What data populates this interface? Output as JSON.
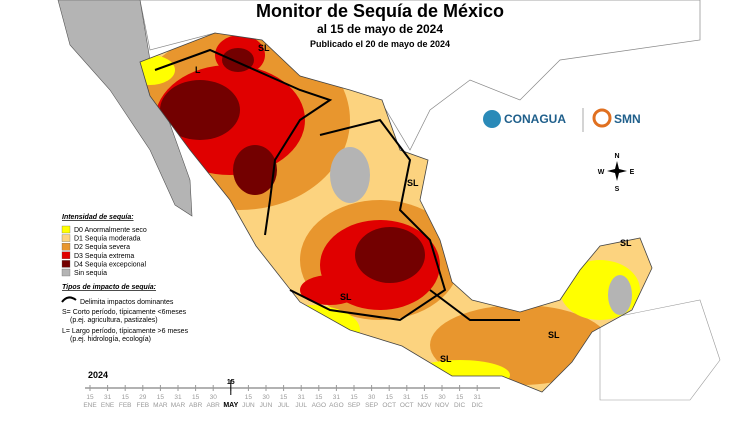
{
  "header": {
    "title": "Monitor de Sequía de México",
    "subtitle": "al 15 de mayo de 2024",
    "published": "Publicado el 20 de mayo de 2024"
  },
  "logos": {
    "left": "CONAGUA",
    "right": "SMN"
  },
  "legend": {
    "title": "Intensidad de sequía:",
    "items": [
      {
        "label": "D0 Anormalmente seco",
        "color": "#ffff00"
      },
      {
        "label": "D1 Sequía moderada",
        "color": "#fcd37f"
      },
      {
        "label": "D2 Sequía severa",
        "color": "#e8962e"
      },
      {
        "label": "D3 Sequía extrema",
        "color": "#e00000"
      },
      {
        "label": "D4 Sequía excepcional",
        "color": "#730000"
      },
      {
        "label": "Sin sequía",
        "color": "#b4b4b4"
      }
    ]
  },
  "impacts": {
    "title": "Tipos de impacto de sequía:",
    "line": "Delimita impactos dominantes",
    "notes": [
      "S= Corto período, típicamente <6meses",
      "(p.ej. agricultura, pastizales)",
      "L= Largo período, típicamente >6 meses",
      "(p.ej. hidrología, ecología)"
    ]
  },
  "map_labels": [
    "SL",
    "L",
    "SL",
    "SL",
    "SL",
    "SL",
    "SL"
  ],
  "compass": [
    "N",
    "E",
    "S",
    "W"
  ],
  "timeline": {
    "year": "2024",
    "current": 8,
    "ticks": [
      {
        "day": "15",
        "month": "ENE"
      },
      {
        "day": "31",
        "month": "ENE"
      },
      {
        "day": "15",
        "month": "FEB"
      },
      {
        "day": "29",
        "month": "FEB"
      },
      {
        "day": "15",
        "month": "MAR"
      },
      {
        "day": "31",
        "month": "MAR"
      },
      {
        "day": "15",
        "month": "ABR"
      },
      {
        "day": "30",
        "month": "ABR"
      },
      {
        "day": "15",
        "month": "MAY"
      },
      {
        "day": "15",
        "month": "JUN"
      },
      {
        "day": "30",
        "month": "JUN"
      },
      {
        "day": "15",
        "month": "JUL"
      },
      {
        "day": "31",
        "month": "JUL"
      },
      {
        "day": "15",
        "month": "AGO"
      },
      {
        "day": "31",
        "month": "AGO"
      },
      {
        "day": "15",
        "month": "SEP"
      },
      {
        "day": "30",
        "month": "SEP"
      },
      {
        "day": "15",
        "month": "OCT"
      },
      {
        "day": "31",
        "month": "OCT"
      },
      {
        "day": "15",
        "month": "NOV"
      },
      {
        "day": "30",
        "month": "NOV"
      },
      {
        "day": "15",
        "month": "DIC"
      },
      {
        "day": "31",
        "month": "DIC"
      }
    ]
  }
}
